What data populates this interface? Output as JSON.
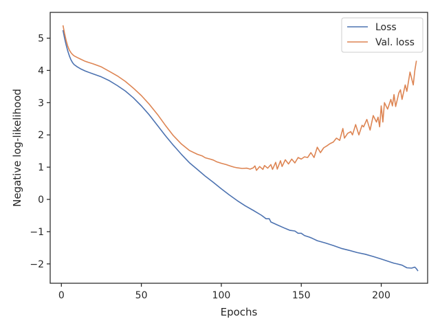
{
  "chart_data": {
    "type": "line",
    "title": "",
    "xlabel": "Epochs",
    "ylabel": "Negative log-likelihood",
    "xlim": [
      -7,
      229
    ],
    "ylim": [
      -2.6,
      5.8
    ],
    "xticks": [
      0,
      50,
      100,
      150,
      200
    ],
    "yticks": [
      -2,
      -1,
      0,
      1,
      2,
      3,
      4,
      5
    ],
    "ytick_labels": [
      "−2",
      "−1",
      "0",
      "1",
      "2",
      "3",
      "4",
      "5"
    ],
    "grid": false,
    "legend": "top-right",
    "series": [
      {
        "name": "Loss",
        "color": "#4c72b0",
        "points": [
          [
            1,
            5.25
          ],
          [
            2,
            5.0
          ],
          [
            3,
            4.78
          ],
          [
            4,
            4.6
          ],
          [
            5,
            4.45
          ],
          [
            6,
            4.33
          ],
          [
            7,
            4.24
          ],
          [
            8,
            4.18
          ],
          [
            10,
            4.11
          ],
          [
            12,
            4.05
          ],
          [
            15,
            3.98
          ],
          [
            20,
            3.89
          ],
          [
            25,
            3.8
          ],
          [
            30,
            3.68
          ],
          [
            35,
            3.53
          ],
          [
            40,
            3.36
          ],
          [
            45,
            3.15
          ],
          [
            50,
            2.9
          ],
          [
            55,
            2.62
          ],
          [
            60,
            2.3
          ],
          [
            65,
            1.98
          ],
          [
            70,
            1.68
          ],
          [
            75,
            1.4
          ],
          [
            80,
            1.14
          ],
          [
            85,
            0.93
          ],
          [
            90,
            0.72
          ],
          [
            95,
            0.53
          ],
          [
            100,
            0.33
          ],
          [
            105,
            0.14
          ],
          [
            110,
            -0.04
          ],
          [
            115,
            -0.2
          ],
          [
            120,
            -0.34
          ],
          [
            125,
            -0.49
          ],
          [
            128,
            -0.6
          ],
          [
            130,
            -0.6
          ],
          [
            131,
            -0.7
          ],
          [
            135,
            -0.79
          ],
          [
            140,
            -0.9
          ],
          [
            143,
            -0.96
          ],
          [
            146,
            -0.98
          ],
          [
            148,
            -1.05
          ],
          [
            150,
            -1.05
          ],
          [
            152,
            -1.12
          ],
          [
            155,
            -1.17
          ],
          [
            157,
            -1.21
          ],
          [
            160,
            -1.28
          ],
          [
            165,
            -1.35
          ],
          [
            170,
            -1.43
          ],
          [
            175,
            -1.52
          ],
          [
            180,
            -1.58
          ],
          [
            185,
            -1.65
          ],
          [
            190,
            -1.7
          ],
          [
            195,
            -1.77
          ],
          [
            200,
            -1.85
          ],
          [
            205,
            -1.93
          ],
          [
            208,
            -1.98
          ],
          [
            210,
            -2.0
          ],
          [
            213,
            -2.04
          ],
          [
            216,
            -2.12
          ],
          [
            219,
            -2.13
          ],
          [
            221,
            -2.1
          ],
          [
            222,
            -2.15
          ],
          [
            223,
            -2.22
          ]
        ]
      },
      {
        "name": "Val. loss",
        "color": "#dd8452",
        "points": [
          [
            1,
            5.4
          ],
          [
            2,
            5.15
          ],
          [
            3,
            4.92
          ],
          [
            4,
            4.75
          ],
          [
            5,
            4.63
          ],
          [
            6,
            4.55
          ],
          [
            7,
            4.49
          ],
          [
            8,
            4.45
          ],
          [
            10,
            4.4
          ],
          [
            12,
            4.35
          ],
          [
            15,
            4.28
          ],
          [
            20,
            4.2
          ],
          [
            25,
            4.11
          ],
          [
            30,
            3.97
          ],
          [
            35,
            3.83
          ],
          [
            40,
            3.66
          ],
          [
            45,
            3.45
          ],
          [
            50,
            3.22
          ],
          [
            55,
            2.95
          ],
          [
            60,
            2.64
          ],
          [
            65,
            2.3
          ],
          [
            70,
            1.98
          ],
          [
            75,
            1.72
          ],
          [
            80,
            1.52
          ],
          [
            85,
            1.4
          ],
          [
            88,
            1.35
          ],
          [
            90,
            1.29
          ],
          [
            93,
            1.25
          ],
          [
            95,
            1.22
          ],
          [
            97,
            1.17
          ],
          [
            100,
            1.12
          ],
          [
            103,
            1.08
          ],
          [
            106,
            1.03
          ],
          [
            108,
            1.0
          ],
          [
            110,
            0.98
          ],
          [
            113,
            0.96
          ],
          [
            116,
            0.97
          ],
          [
            118,
            0.94
          ],
          [
            120,
            0.98
          ],
          [
            121,
            1.04
          ],
          [
            122,
            0.9
          ],
          [
            124,
            1.02
          ],
          [
            126,
            0.93
          ],
          [
            127,
            1.05
          ],
          [
            129,
            0.97
          ],
          [
            131,
            1.08
          ],
          [
            132,
            0.93
          ],
          [
            134,
            1.15
          ],
          [
            135,
            0.94
          ],
          [
            137,
            1.2
          ],
          [
            138,
            1.02
          ],
          [
            140,
            1.23
          ],
          [
            142,
            1.1
          ],
          [
            144,
            1.25
          ],
          [
            146,
            1.13
          ],
          [
            148,
            1.3
          ],
          [
            150,
            1.25
          ],
          [
            152,
            1.32
          ],
          [
            154,
            1.3
          ],
          [
            156,
            1.45
          ],
          [
            158,
            1.3
          ],
          [
            160,
            1.62
          ],
          [
            162,
            1.45
          ],
          [
            164,
            1.6
          ],
          [
            166,
            1.66
          ],
          [
            168,
            1.73
          ],
          [
            170,
            1.78
          ],
          [
            172,
            1.9
          ],
          [
            174,
            1.83
          ],
          [
            176,
            2.2
          ],
          [
            177,
            1.9
          ],
          [
            179,
            2.05
          ],
          [
            181,
            2.1
          ],
          [
            182,
            2.0
          ],
          [
            184,
            2.32
          ],
          [
            186,
            2.0
          ],
          [
            188,
            2.3
          ],
          [
            189,
            2.25
          ],
          [
            191,
            2.48
          ],
          [
            193,
            2.15
          ],
          [
            195,
            2.6
          ],
          [
            197,
            2.4
          ],
          [
            198,
            2.55
          ],
          [
            199,
            2.25
          ],
          [
            200,
            2.9
          ],
          [
            201,
            2.4
          ],
          [
            202,
            3.0
          ],
          [
            204,
            2.8
          ],
          [
            206,
            3.1
          ],
          [
            207,
            2.9
          ],
          [
            208,
            3.25
          ],
          [
            209,
            2.88
          ],
          [
            211,
            3.3
          ],
          [
            212,
            3.4
          ],
          [
            213,
            3.1
          ],
          [
            215,
            3.55
          ],
          [
            216,
            3.35
          ],
          [
            218,
            3.95
          ],
          [
            220,
            3.55
          ],
          [
            221,
            4.0
          ],
          [
            222,
            4.3
          ]
        ]
      }
    ]
  }
}
